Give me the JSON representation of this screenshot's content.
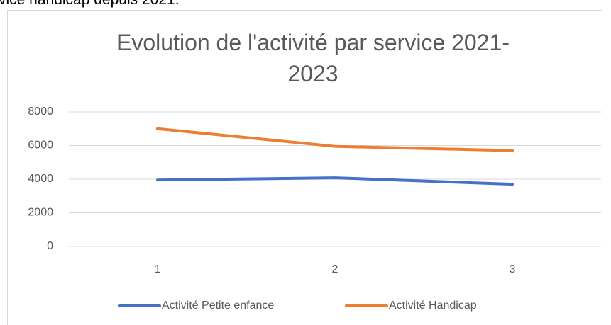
{
  "document_text": "vice handicap depuis 2021.",
  "chart_data": {
    "type": "line",
    "title": "Evolution de l'activité par service 2021-2023",
    "categories": [
      1,
      2,
      3
    ],
    "series": [
      {
        "name": "Activité Petite enfance",
        "color": "#4472c4",
        "values": [
          3950,
          4080,
          3700
        ]
      },
      {
        "name": "Activité Handicap",
        "color": "#ed7d31",
        "values": [
          7000,
          5950,
          5700
        ]
      }
    ],
    "ylim": [
      0,
      8000
    ],
    "yticks": [
      0,
      2000,
      4000,
      6000,
      8000
    ],
    "grid": true,
    "legend": "bottom"
  }
}
